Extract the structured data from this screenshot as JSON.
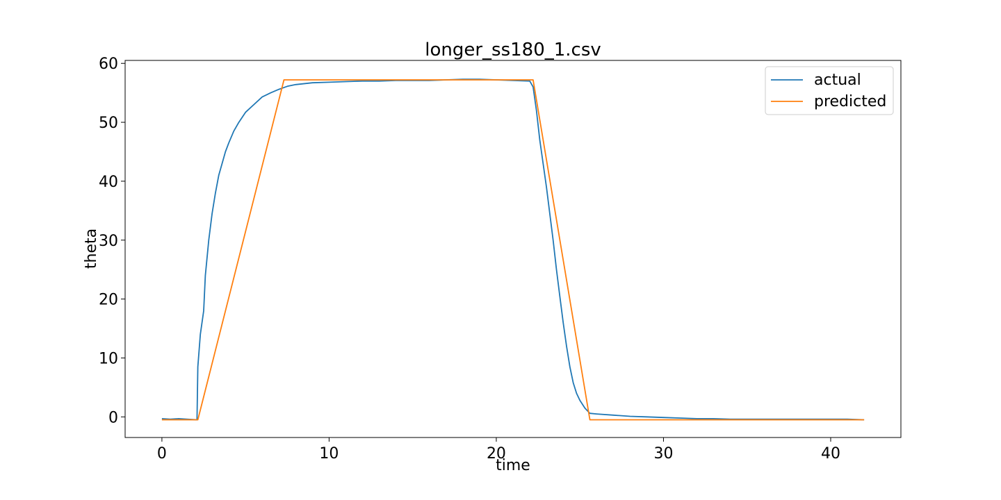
{
  "chart_data": {
    "type": "line",
    "title": "longer_ss180_1.csv",
    "xlabel": "time",
    "ylabel": "theta",
    "xlim": [
      -2.2,
      44.2
    ],
    "ylim": [
      -3.5,
      60.5
    ],
    "xticks": [
      0,
      10,
      20,
      30,
      40
    ],
    "yticks": [
      0,
      10,
      20,
      30,
      40,
      50,
      60
    ],
    "grid": false,
    "legend_position": "upper right",
    "series": [
      {
        "name": "actual",
        "color": "#1f77b4",
        "points": [
          [
            0,
            -0.3
          ],
          [
            0.5,
            -0.4
          ],
          [
            1.0,
            -0.3
          ],
          [
            1.5,
            -0.4
          ],
          [
            2.1,
            -0.5
          ],
          [
            2.15,
            8.5
          ],
          [
            2.3,
            14
          ],
          [
            2.5,
            18
          ],
          [
            2.6,
            24
          ],
          [
            2.8,
            30
          ],
          [
            3.0,
            34.5
          ],
          [
            3.2,
            38
          ],
          [
            3.4,
            41
          ],
          [
            3.6,
            43
          ],
          [
            3.8,
            45
          ],
          [
            4.0,
            46.5
          ],
          [
            4.3,
            48.5
          ],
          [
            4.6,
            50
          ],
          [
            5.0,
            51.7
          ],
          [
            5.5,
            53
          ],
          [
            6.0,
            54.3
          ],
          [
            6.5,
            55
          ],
          [
            7.0,
            55.6
          ],
          [
            7.5,
            56.1
          ],
          [
            8.0,
            56.4
          ],
          [
            9.0,
            56.7
          ],
          [
            10.0,
            56.8
          ],
          [
            11.0,
            56.9
          ],
          [
            12.0,
            57.0
          ],
          [
            13.0,
            57.0
          ],
          [
            14.0,
            57.1
          ],
          [
            15.0,
            57.1
          ],
          [
            16.0,
            57.1
          ],
          [
            17.0,
            57.2
          ],
          [
            18.0,
            57.3
          ],
          [
            19.0,
            57.3
          ],
          [
            20.0,
            57.2
          ],
          [
            21.0,
            57.1
          ],
          [
            22.0,
            57.0
          ],
          [
            22.2,
            56.0
          ],
          [
            22.4,
            52.0
          ],
          [
            22.6,
            47.0
          ],
          [
            22.8,
            43.0
          ],
          [
            23.0,
            39.0
          ],
          [
            23.2,
            34.5
          ],
          [
            23.4,
            30.0
          ],
          [
            23.6,
            25.0
          ],
          [
            23.8,
            20.5
          ],
          [
            24.0,
            16.0
          ],
          [
            24.2,
            12.0
          ],
          [
            24.4,
            8.5
          ],
          [
            24.6,
            5.8
          ],
          [
            24.8,
            4.0
          ],
          [
            25.0,
            2.8
          ],
          [
            25.3,
            1.5
          ],
          [
            25.6,
            0.6
          ],
          [
            26.0,
            0.5
          ],
          [
            27.0,
            0.3
          ],
          [
            28.0,
            0.1
          ],
          [
            29.0,
            0.0
          ],
          [
            30.0,
            -0.1
          ],
          [
            31.0,
            -0.2
          ],
          [
            32.0,
            -0.3
          ],
          [
            33.0,
            -0.3
          ],
          [
            34.0,
            -0.4
          ],
          [
            35.0,
            -0.4
          ],
          [
            36.0,
            -0.4
          ],
          [
            37.0,
            -0.4
          ],
          [
            38.0,
            -0.4
          ],
          [
            39.0,
            -0.4
          ],
          [
            40.0,
            -0.4
          ],
          [
            41.0,
            -0.4
          ],
          [
            42.0,
            -0.5
          ]
        ]
      },
      {
        "name": "predicted",
        "color": "#ff7f0e",
        "points": [
          [
            0,
            -0.5
          ],
          [
            2.15,
            -0.5
          ],
          [
            7.3,
            57.2
          ],
          [
            22.2,
            57.2
          ],
          [
            25.6,
            -0.5
          ],
          [
            42.0,
            -0.5
          ]
        ]
      }
    ]
  }
}
